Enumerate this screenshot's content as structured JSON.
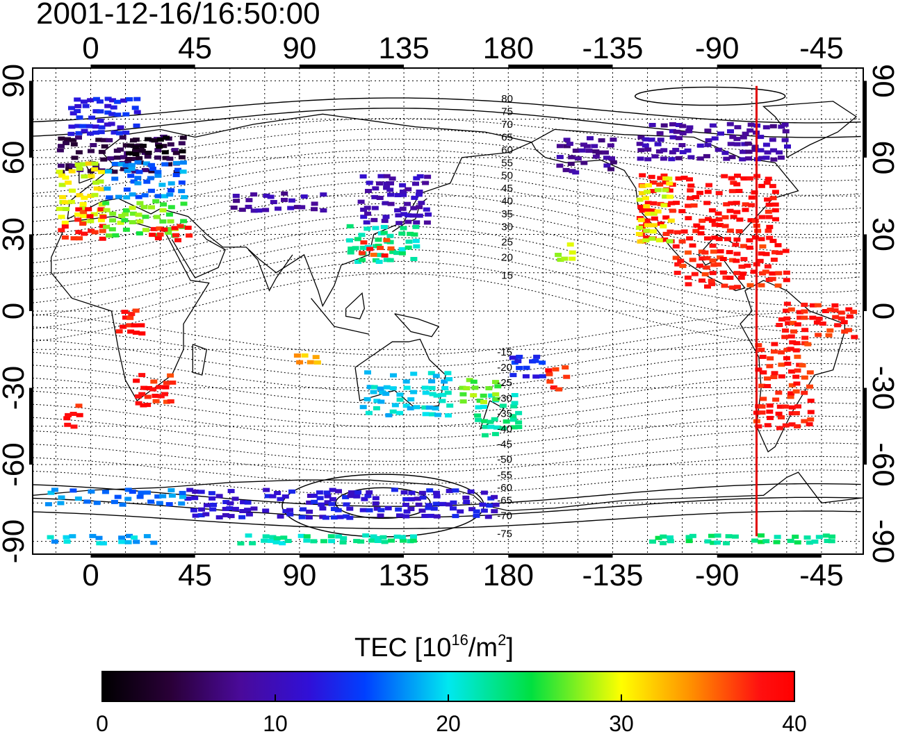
{
  "title": "2001-12-16/16:50:00",
  "map": {
    "lon_ticks_top": [
      "0",
      "45",
      "90",
      "135",
      "180",
      "-135",
      "-90",
      "-45"
    ],
    "lon_ticks_bottom": [
      "0",
      "45",
      "90",
      "135",
      "180",
      "-135",
      "-90",
      "-45"
    ],
    "lon_tick_values": [
      0,
      45,
      90,
      135,
      180,
      225,
      270,
      315
    ],
    "lat_ticks_left": [
      "90",
      "60",
      "30",
      "0",
      "-30",
      "-60",
      "-90"
    ],
    "lat_ticks_right": [
      "90",
      "60",
      "30",
      "0",
      "-30",
      "-60",
      "-90"
    ],
    "lat_tick_values": [
      90,
      60,
      30,
      0,
      -30,
      -60,
      -90
    ],
    "lon_range": [
      -25,
      333
    ],
    "lat_range": [
      -95,
      95
    ],
    "grid": "dotted",
    "terminator_longitude": 287,
    "terminator_color": "#e00000",
    "contour_labels_north": [
      "80",
      "75",
      "70",
      "65",
      "60",
      "55",
      "50",
      "45",
      "40",
      "35",
      "30",
      "25",
      "20",
      "15"
    ],
    "contour_labels_south": [
      "-15",
      "-20",
      "-25",
      "-30",
      "-35",
      "-40",
      "-45",
      "-50",
      "-55",
      "-60",
      "-65",
      "-70",
      "-75"
    ],
    "contour_label_lats_north": [
      83,
      78,
      73,
      68,
      63,
      58,
      53,
      48,
      43,
      38,
      33,
      27,
      21,
      14
    ],
    "contour_label_lats_south": [
      -4,
      -10,
      -16,
      -22,
      -28,
      -34,
      -40,
      -46,
      -52,
      -57,
      -62,
      -68,
      -75
    ]
  },
  "colorbar": {
    "title_main": "TEC  [10",
    "title_sup1": "16",
    "title_mid": "/m",
    "title_sup2": "2",
    "title_end": "]",
    "tick_labels": [
      "0",
      "10",
      "20",
      "30",
      "40"
    ],
    "tick_values": [
      0,
      10,
      20,
      30,
      40
    ],
    "range": [
      0,
      40
    ],
    "colormap": "rainbow (black-purple-blue-cyan-green-yellow-red)"
  },
  "chart_data": {
    "type": "heatmap",
    "title": "2001-12-16/16:50:00",
    "xlabel": "",
    "ylabel": "",
    "value_label": "TEC [10^16/m^2]",
    "value_range": [
      0,
      40
    ],
    "regions": [
      {
        "lon": [
          -15,
          40
        ],
        "lat": [
          55,
          70
        ],
        "tec": 5
      },
      {
        "lon": [
          15,
          40
        ],
        "lat": [
          62,
          70
        ],
        "tec": 2
      },
      {
        "lon": [
          -15,
          5
        ],
        "lat": [
          35,
          60
        ],
        "tec": 30
      },
      {
        "lon": [
          5,
          40
        ],
        "lat": [
          45,
          60
        ],
        "tec": 17
      },
      {
        "lon": [
          -15,
          5
        ],
        "lat": [
          28,
          42
        ],
        "tec": 38
      },
      {
        "lon": [
          5,
          40
        ],
        "lat": [
          30,
          45
        ],
        "tec": 27
      },
      {
        "lon": [
          25,
          42
        ],
        "lat": [
          28,
          35
        ],
        "tec": 38
      },
      {
        "lon": [
          -10,
          20
        ],
        "lat": [
          70,
          85
        ],
        "tec": 13
      },
      {
        "lon": [
          60,
          100
        ],
        "lat": [
          40,
          48
        ],
        "tec": 9
      },
      {
        "lon": [
          115,
          145
        ],
        "lat": [
          35,
          55
        ],
        "tec": 10
      },
      {
        "lon": [
          110,
          140
        ],
        "lat": [
          20,
          35
        ],
        "tec": 22
      },
      {
        "lon": [
          115,
          130
        ],
        "lat": [
          22,
          30
        ],
        "tec": 37
      },
      {
        "lon": [
          10,
          22
        ],
        "lat": [
          -8,
          2
        ],
        "tec": 38
      },
      {
        "lon": [
          18,
          35
        ],
        "lat": [
          -36,
          -22
        ],
        "tec": 38
      },
      {
        "lon": [
          -12,
          -5
        ],
        "lat": [
          -45,
          -35
        ],
        "tec": 38
      },
      {
        "lon": [
          85,
          100
        ],
        "lat": [
          -20,
          -15
        ],
        "tec": 33
      },
      {
        "lon": [
          115,
          155
        ],
        "lat": [
          -40,
          -22
        ],
        "tec": 20
      },
      {
        "lon": [
          165,
          185
        ],
        "lat": [
          -48,
          -30
        ],
        "tec": 22
      },
      {
        "lon": [
          158,
          175
        ],
        "lat": [
          -35,
          -25
        ],
        "tec": 27
      },
      {
        "lon": [
          180,
          195
        ],
        "lat": [
          -25,
          -15
        ],
        "tec": 14
      },
      {
        "lon": [
          195,
          205
        ],
        "lat": [
          -30,
          -20
        ],
        "tec": 38
      },
      {
        "lon": [
          200,
          210
        ],
        "lat": [
          20,
          28
        ],
        "tec": 28
      },
      {
        "lon": [
          200,
          225
        ],
        "lat": [
          55,
          70
        ],
        "tec": 8
      },
      {
        "lon": [
          235,
          295
        ],
        "lat": [
          28,
          55
        ],
        "tec": 39
      },
      {
        "lon": [
          235,
          250
        ],
        "lat": [
          28,
          55
        ],
        "tec": 30
      },
      {
        "lon": [
          250,
          300
        ],
        "lat": [
          10,
          28
        ],
        "tec": 38
      },
      {
        "lon": [
          295,
          330
        ],
        "lat": [
          -10,
          5
        ],
        "tec": 38
      },
      {
        "lon": [
          285,
          310
        ],
        "lat": [
          -45,
          -10
        ],
        "tec": 38
      },
      {
        "lon": [
          235,
          300
        ],
        "lat": [
          60,
          75
        ],
        "tec": 9
      },
      {
        "lon": [
          40,
          175
        ],
        "lat": [
          -80,
          -68
        ],
        "tec": 12
      },
      {
        "lon": [
          -20,
          40
        ],
        "lat": [
          -75,
          -68
        ],
        "tec": 17
      },
      {
        "lon": [
          -20,
          30
        ],
        "lat": [
          -90,
          -86
        ],
        "tec": 19
      },
      {
        "lon": [
          60,
          140
        ],
        "lat": [
          -90,
          -86
        ],
        "tec": 22
      },
      {
        "lon": [
          240,
          320
        ],
        "lat": [
          -90,
          -86
        ],
        "tec": 23
      }
    ]
  }
}
